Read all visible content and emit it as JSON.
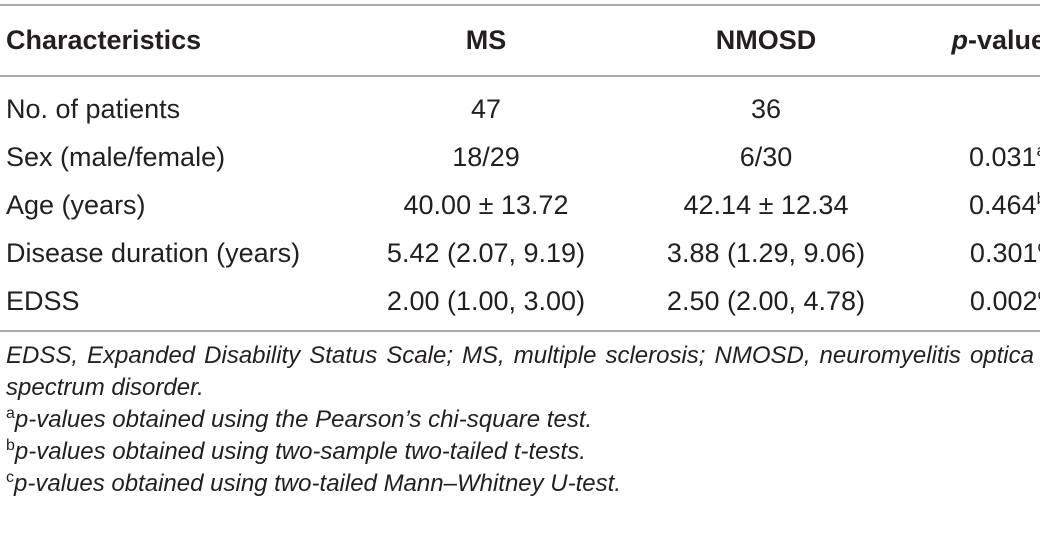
{
  "table": {
    "headers": {
      "characteristics": "Characteristics",
      "ms": "MS",
      "nmosd": "NMOSD",
      "pvalue_italic": "p",
      "pvalue_rest": "-value"
    },
    "rows": [
      {
        "label": "No. of patients",
        "ms": "47",
        "nmosd": "36",
        "p": "",
        "sup": ""
      },
      {
        "label": "Sex (male/female)",
        "ms": "18/29",
        "nmosd": "6/30",
        "p": "0.031",
        "sup": "a"
      },
      {
        "label": "Age (years)",
        "ms": "40.00 ± 13.72",
        "nmosd": "42.14 ± 12.34",
        "p": "0.464",
        "sup": "b"
      },
      {
        "label": "Disease duration (years)",
        "ms": "5.42 (2.07, 9.19)",
        "nmosd": "3.88 (1.29, 9.06)",
        "p": "0.301",
        "sup": "c"
      },
      {
        "label": "EDSS",
        "ms": "2.00 (1.00, 3.00)",
        "nmosd": "2.50 (2.00, 4.78)",
        "p": "0.002",
        "sup": "c"
      }
    ]
  },
  "notes": {
    "abbreviations": "EDSS, Expanded Disability Status Scale; MS, multiple sclerosis; NMOSD, neuromyelitis optica spectrum disorder.",
    "footnotes": [
      {
        "mark": "a",
        "text": "p-values obtained using the Pearson’s chi-square test."
      },
      {
        "mark": "b",
        "text": "p-values obtained using two-sample two-tailed t-tests."
      },
      {
        "mark": "c",
        "text": "p-values obtained using two-tailed Mann–Whitney U-test."
      }
    ]
  }
}
